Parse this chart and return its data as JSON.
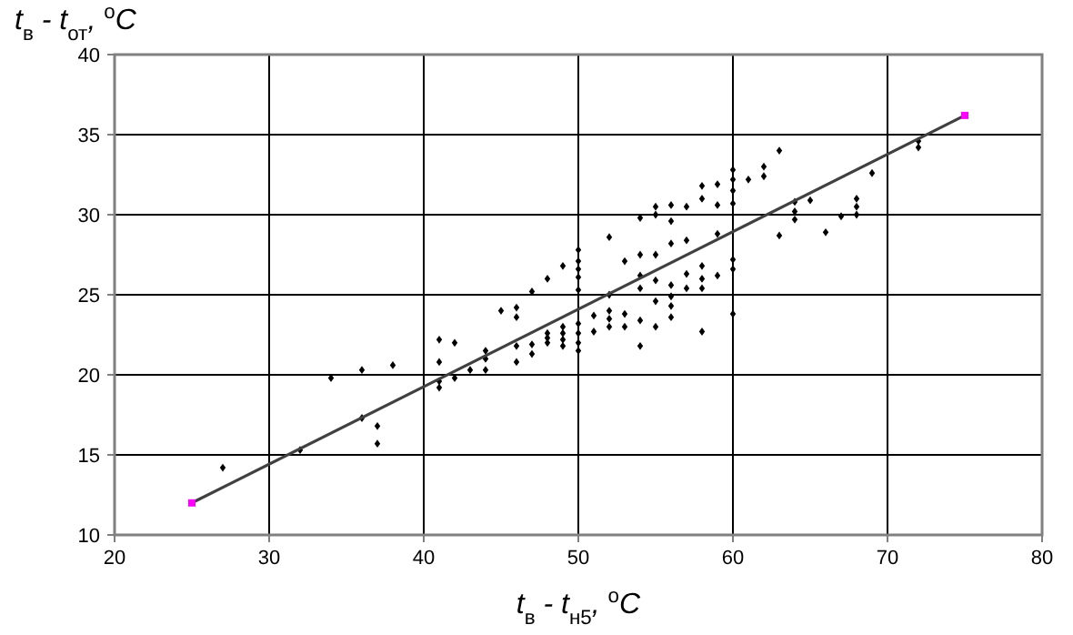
{
  "chart_data": {
    "type": "scatter",
    "xlabel": "t$_{в}$ - t$_{н5}$, $^{o}$C",
    "ylabel": "t$_{в}$ - t$_{от}$, $^{o}$C",
    "xlim": [
      20,
      80
    ],
    "ylim": [
      10,
      40
    ],
    "xticks": [
      20,
      30,
      40,
      50,
      60,
      70,
      80
    ],
    "yticks": [
      10,
      15,
      20,
      25,
      30,
      35,
      40
    ],
    "grid": true,
    "series": [
      {
        "type": "scatter",
        "color": "#000000",
        "marker": "diamond",
        "x": [
          27,
          32,
          34,
          36,
          36,
          37,
          37,
          38,
          41,
          41,
          41,
          41,
          42,
          42,
          43,
          44,
          44,
          44,
          45,
          46,
          46,
          46,
          46,
          47,
          47,
          47,
          48,
          48,
          48,
          48,
          49,
          49,
          49,
          49,
          49,
          50,
          50,
          50,
          50,
          50,
          50,
          50,
          50,
          50,
          51,
          51,
          52,
          52,
          52,
          52,
          52,
          53,
          53,
          53,
          54,
          54,
          54,
          54,
          54,
          54,
          55,
          55,
          55,
          55,
          55,
          55,
          56,
          56,
          56,
          56,
          56,
          56,
          56,
          57,
          57,
          57,
          57,
          58,
          58,
          58,
          58,
          58,
          58,
          59,
          59,
          59,
          59,
          60,
          60,
          60,
          60,
          60,
          60,
          60,
          61,
          62,
          62,
          63,
          63,
          64,
          64,
          64,
          65,
          66,
          67,
          68,
          68,
          68,
          69,
          72,
          72
        ],
        "values": [
          14.2,
          15.3,
          19.8,
          20.3,
          17.3,
          16.8,
          15.7,
          20.6,
          22.2,
          20.8,
          19.6,
          19.2,
          22,
          19.8,
          20.3,
          21.5,
          21,
          20.3,
          24,
          24.2,
          23.6,
          21.8,
          20.8,
          25.2,
          21.9,
          21.3,
          26,
          22.6,
          22.3,
          22,
          26.8,
          23,
          22.6,
          22.2,
          21.8,
          25.3,
          23.2,
          22.6,
          22,
          21.5,
          27.8,
          27.1,
          26.6,
          26.1,
          23.7,
          22.7,
          28.6,
          25,
          24,
          23.5,
          23,
          27.1,
          23.8,
          23,
          29.8,
          27.5,
          26.2,
          25.4,
          23.4,
          21.8,
          30.5,
          30,
          27.5,
          25.9,
          24.6,
          23,
          30.6,
          29.6,
          28.2,
          25.6,
          24.9,
          24.3,
          23.6,
          30.5,
          28.4,
          26.3,
          25.4,
          31.8,
          31,
          26.8,
          26,
          25.4,
          22.7,
          31.9,
          30.6,
          28.8,
          26.2,
          32.8,
          32.2,
          31.5,
          30.7,
          27.2,
          26.6,
          23.8,
          32.2,
          33,
          32.4,
          34,
          28.7,
          30.8,
          30.2,
          29.7,
          30.9,
          28.9,
          29.9,
          31,
          30.5,
          30,
          32.6,
          34.6,
          34.2
        ]
      },
      {
        "type": "line",
        "color": "#404040",
        "marker": "none",
        "line_style": "solid",
        "x": [
          25,
          75
        ],
        "values": [
          12,
          36.2
        ]
      },
      {
        "type": "scatter",
        "color": "#ff00ff",
        "marker": "square",
        "x": [
          25,
          75
        ],
        "values": [
          12,
          36.2
        ]
      }
    ]
  }
}
